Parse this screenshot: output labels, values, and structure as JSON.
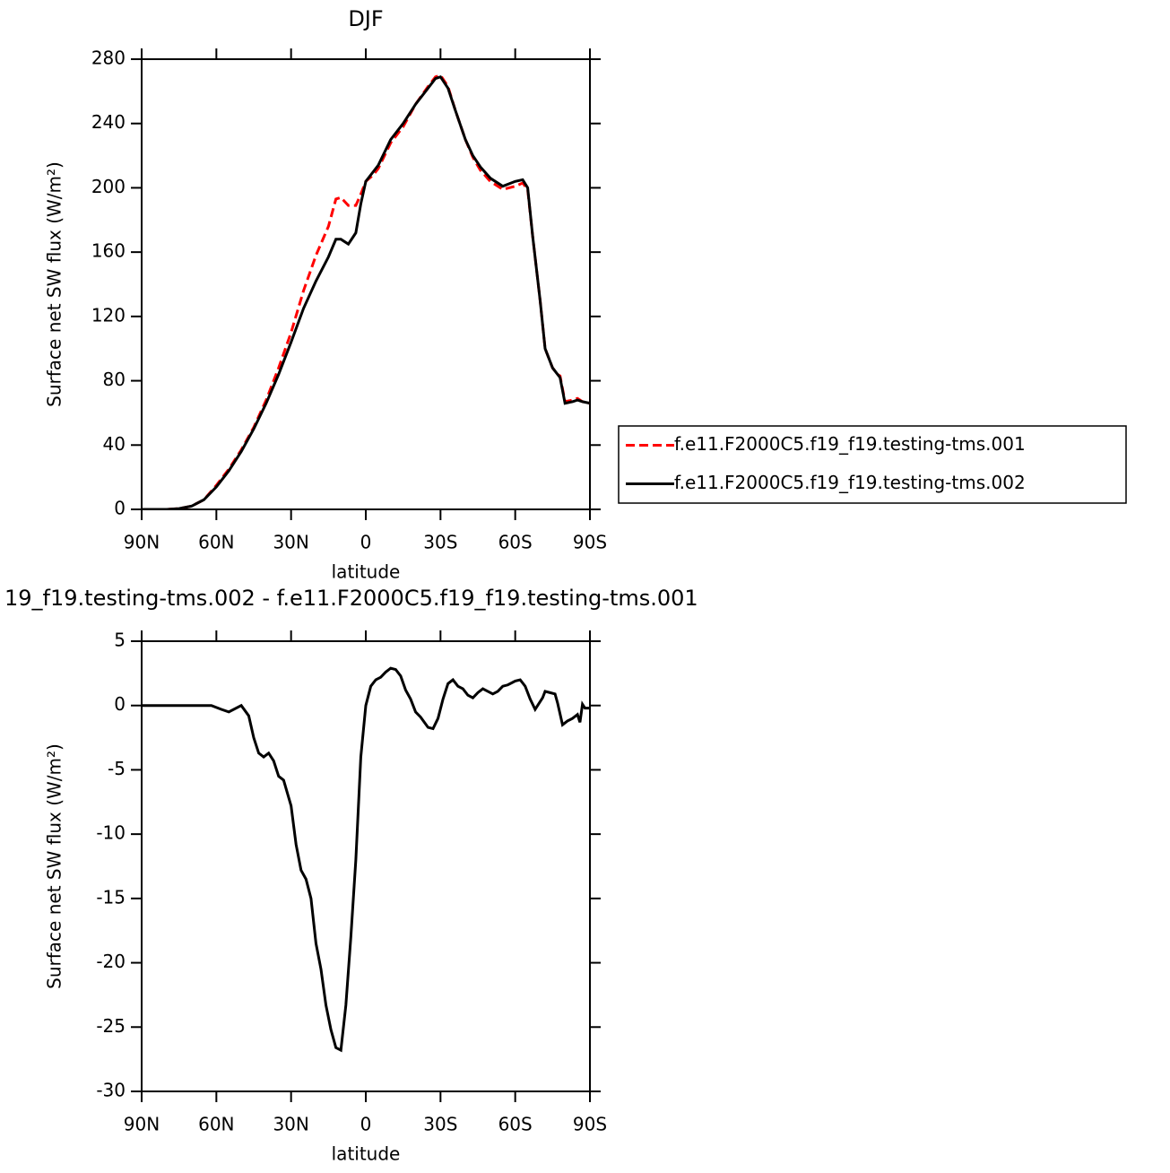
{
  "chart_data": [
    {
      "type": "line",
      "title": "DJF",
      "xlabel": "latitude",
      "ylabel": "Surface net SW flux (W/m²)",
      "x": [
        90,
        80,
        75,
        70,
        65,
        60,
        55,
        50,
        45,
        40,
        35,
        30,
        25,
        20,
        15,
        12,
        10,
        7,
        4,
        2,
        0,
        -3,
        -5,
        -10,
        -15,
        -20,
        -25,
        -28,
        -30,
        -33,
        -36,
        -40,
        -43,
        -46,
        -50,
        -55,
        -60,
        -63,
        -65,
        -67,
        -70,
        -72,
        -75,
        -77,
        -78,
        -80,
        -83,
        -85,
        -87,
        -90
      ],
      "series": [
        {
          "name": "f.e11.F2000C5.f19_f19.testing-tms.001",
          "color": "#ff0000",
          "style": "dashed",
          "values": [
            0,
            0,
            0.5,
            2,
            6,
            15,
            25,
            37,
            51,
            68,
            88,
            110,
            136,
            158,
            176,
            193,
            194,
            189,
            189,
            196,
            204,
            208,
            212,
            228,
            238,
            252,
            263,
            269,
            270,
            263,
            248,
            230,
            219,
            211,
            204,
            199,
            201,
            203,
            199,
            170,
            130,
            100,
            88,
            84,
            83,
            67,
            68,
            69,
            67,
            66
          ]
        },
        {
          "name": "f.e11.F2000C5.f19_f19.testing-tms.002",
          "color": "#000000",
          "style": "solid",
          "values": [
            0,
            0,
            0.5,
            2,
            6,
            14,
            24,
            36,
            50,
            66,
            84,
            104,
            125,
            142,
            157,
            168,
            168,
            165,
            172,
            190,
            204,
            210,
            214,
            230,
            240,
            252,
            262,
            268,
            269,
            262,
            248,
            230,
            220,
            213,
            206,
            201,
            204,
            205,
            200,
            170,
            130,
            100,
            88,
            84,
            82,
            66,
            67,
            68,
            67,
            66
          ]
        }
      ],
      "xlim": [
        90,
        -90
      ],
      "xticks": [
        {
          "value": 90,
          "label": "90N"
        },
        {
          "value": 60,
          "label": "60N"
        },
        {
          "value": 30,
          "label": "30N"
        },
        0,
        {
          "value": -30,
          "label": "30S"
        },
        {
          "value": -60,
          "label": "60S"
        },
        {
          "value": -90,
          "label": "90S"
        }
      ],
      "ylim": [
        0,
        280
      ],
      "yticks": [
        0,
        40,
        80,
        120,
        160,
        200,
        240,
        280
      ],
      "legend": "right"
    },
    {
      "type": "line",
      "title": "19_f19.testing-tms.002 - f.e11.F2000C5.f19_f19.testing-tms.001",
      "xlabel": "latitude",
      "ylabel": "Surface net SW flux (W/m²)",
      "x": [
        90,
        65,
        62,
        58,
        55,
        50,
        47,
        45,
        43,
        41,
        39,
        37,
        35,
        33,
        30,
        28,
        26,
        24,
        22,
        20,
        18,
        16,
        14,
        12,
        10,
        8,
        6,
        4,
        2,
        0,
        -2,
        -4,
        -6,
        -8,
        -10,
        -12,
        -14,
        -16,
        -18,
        -20,
        -22,
        -25,
        -27,
        -29,
        -31,
        -33,
        -35,
        -37,
        -39,
        -41,
        -43,
        -45,
        -47,
        -49,
        -51,
        -53,
        -55,
        -57,
        -60,
        -62,
        -64,
        -66,
        -68,
        -71,
        -72,
        -74,
        -76,
        -77,
        -79,
        -81,
        -83,
        -85,
        -86,
        -87,
        -88,
        -90
      ],
      "values": [
        0,
        0,
        0,
        -0.3,
        -0.5,
        0,
        -0.8,
        -2.5,
        -3.7,
        -4,
        -3.7,
        -4.3,
        -5.5,
        -5.8,
        -7.8,
        -10.8,
        -12.8,
        -13.5,
        -15,
        -18.5,
        -20.5,
        -23.3,
        -25.2,
        -26.6,
        -26.8,
        -23.3,
        -18,
        -12,
        -4,
        0,
        1.5,
        2,
        2.2,
        2.6,
        2.9,
        2.8,
        2.3,
        1.2,
        0.5,
        -0.5,
        -0.9,
        -1.7,
        -1.8,
        -1,
        0.5,
        1.7,
        2,
        1.5,
        1.3,
        0.8,
        0.6,
        1,
        1.3,
        1.1,
        0.9,
        1.1,
        1.5,
        1.6,
        1.9,
        2,
        1.5,
        0.5,
        -0.3,
        0.6,
        1.1,
        1,
        0.9,
        0.2,
        -1.5,
        -1.2,
        -1,
        -0.7,
        -1.3,
        0.1,
        -0.2,
        -0.2
      ],
      "color": "#000000",
      "xlim": [
        90,
        -90
      ],
      "xticks": [
        {
          "value": 90,
          "label": "90N"
        },
        {
          "value": 60,
          "label": "60N"
        },
        {
          "value": 30,
          "label": "30N"
        },
        0,
        {
          "value": -30,
          "label": "30S"
        },
        {
          "value": -60,
          "label": "60S"
        },
        {
          "value": -90,
          "label": "90S"
        }
      ],
      "ylim": [
        -30,
        5
      ],
      "yticks": [
        5,
        0,
        -5,
        -10,
        -15,
        -20,
        -25,
        -30
      ]
    }
  ]
}
